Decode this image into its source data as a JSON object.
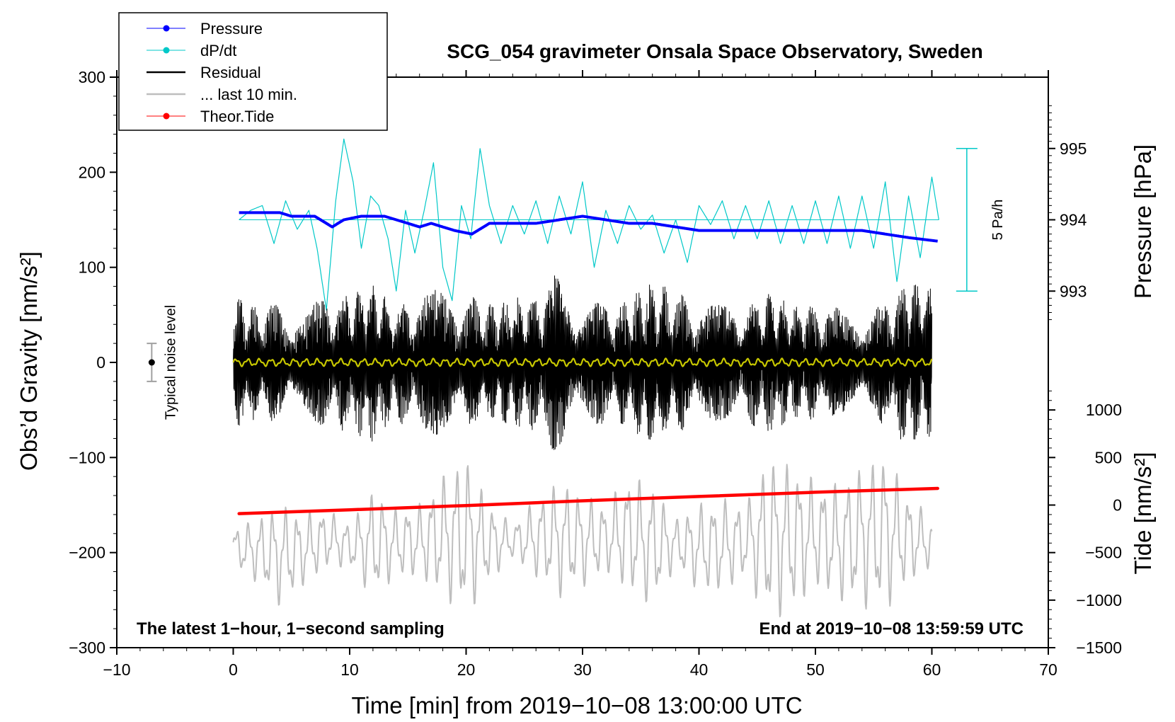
{
  "chart_data": {
    "type": "line",
    "title": "SCG_054 gravimeter Onsala Space Observatory, Sweden",
    "xlabel": "Time [min] from 2019−10−08 13:00:00 UTC",
    "ylabel_left": "Obs’d Gravity [nm/s²]",
    "ylabel_right_top": "Pressure [hPa]",
    "ylabel_right_bottom": "Tide [nm/s²]",
    "xlim": [
      -10,
      70
    ],
    "ylim": [
      -300,
      300
    ],
    "x_ticks": [
      -10,
      0,
      10,
      20,
      30,
      40,
      50,
      60,
      70
    ],
    "x_tick_labels": [
      "−10",
      "0",
      "10",
      "20",
      "30",
      "40",
      "50",
      "60",
      "70"
    ],
    "y_ticks": [
      -300,
      -200,
      -100,
      0,
      100,
      200,
      300
    ],
    "y_tick_labels": [
      "−300",
      "−200",
      "−100",
      "0",
      "100",
      "200",
      "300"
    ],
    "pressure_ticks": [
      993,
      994,
      995
    ],
    "pressure_tick_labels": [
      "993",
      "994",
      "995"
    ],
    "tide_ticks": [
      -1500,
      -1000,
      -500,
      0,
      500,
      1000
    ],
    "tide_tick_labels": [
      "−1500",
      "−1000",
      "−500",
      "0",
      "500",
      "1000"
    ],
    "pressure_axis": {
      "g_at_993": 75,
      "g_at_995": 225
    },
    "tide_axis": {
      "g_at_minus1500": -300,
      "g_at_1000": -50
    },
    "legend": [
      {
        "label": "Pressure",
        "color": "#0000ff",
        "marker": true
      },
      {
        "label": "dP/dt",
        "color": "#00c8c8",
        "marker": true
      },
      {
        "label": "Residual",
        "color": "#000000",
        "marker": false
      },
      {
        "label": "... last 10 min.",
        "color": "#bebebe",
        "marker": false
      },
      {
        "label": "Theor.Tide",
        "color": "#ff0000",
        "marker": true
      }
    ],
    "annotations": {
      "left_note": "The latest 1−hour, 1−second sampling",
      "right_note": "End at 2019−10−08 13:59:59 UTC",
      "noise_label": "Typical noise level",
      "scale_bar_label": "5 Pa/h"
    },
    "noise_bar": {
      "x": -7,
      "center": 0,
      "half_range": 20
    },
    "scale_bar": {
      "x": 63,
      "y_top": 225,
      "y_bottom": 75
    },
    "series": [
      {
        "name": "Pressure",
        "color": "#0000ff",
        "axis": "pressure_hPa",
        "x": [
          0.5,
          2,
          4,
          5,
          6,
          7,
          8.5,
          9.5,
          11,
          13,
          14,
          15,
          16,
          17,
          18,
          19,
          20.5,
          22,
          24,
          26,
          28,
          30,
          32,
          34,
          36,
          38,
          40,
          42,
          44,
          46,
          48,
          50,
          52,
          54,
          56,
          58,
          60.5
        ],
        "y": [
          994.1,
          994.1,
          994.1,
          994.05,
          994.05,
          994.05,
          993.9,
          994.0,
          994.05,
          994.05,
          994.0,
          993.95,
          993.9,
          993.95,
          993.9,
          993.85,
          993.8,
          993.95,
          993.95,
          993.95,
          994.0,
          994.05,
          994.0,
          993.95,
          993.95,
          993.9,
          993.85,
          993.85,
          993.85,
          993.85,
          993.85,
          993.85,
          993.85,
          993.85,
          993.8,
          993.75,
          993.7
        ]
      },
      {
        "name": "dP/dt",
        "color": "#00c8c8",
        "axis": "g_units",
        "baseline": 150,
        "x": [
          0.5,
          1.5,
          2.5,
          3.5,
          4.5,
          5.5,
          6.5,
          7.2,
          8,
          8.8,
          9.5,
          10.3,
          11,
          11.8,
          12.5,
          13.3,
          14,
          14.8,
          15.6,
          16.4,
          17.2,
          18,
          18.8,
          19.6,
          20.4,
          21.2,
          22,
          23,
          24,
          25,
          26,
          27,
          28,
          29,
          30,
          31,
          32,
          33,
          34,
          35,
          36,
          37,
          38,
          39,
          40,
          41,
          42,
          43,
          44,
          45,
          46,
          47,
          48,
          49,
          50,
          51,
          52,
          53,
          54,
          55,
          56,
          57,
          58,
          59,
          60,
          60.6
        ],
        "y": [
          150,
          160,
          165,
          125,
          170,
          140,
          160,
          120,
          55,
          170,
          235,
          190,
          120,
          175,
          165,
          130,
          75,
          160,
          115,
          160,
          210,
          100,
          65,
          165,
          130,
          225,
          165,
          125,
          165,
          135,
          170,
          125,
          175,
          135,
          190,
          100,
          160,
          125,
          165,
          140,
          155,
          115,
          150,
          105,
          165,
          145,
          170,
          130,
          165,
          130,
          170,
          125,
          165,
          125,
          170,
          125,
          175,
          120,
          175,
          120,
          190,
          85,
          175,
          110,
          195,
          150
        ]
      },
      {
        "name": "Residual",
        "color": "#000000",
        "axis": "g_units",
        "x": [
          0,
          2,
          4,
          6,
          8,
          10,
          12,
          14,
          16,
          18,
          20,
          22,
          24,
          26,
          28,
          30,
          32,
          34,
          36,
          38,
          40,
          42,
          44,
          46,
          48,
          50,
          52,
          54,
          56,
          58,
          60
        ],
        "envelope_pos": [
          72,
          58,
          64,
          55,
          70,
          75,
          82,
          60,
          73,
          78,
          72,
          62,
          67,
          73,
          97,
          70,
          62,
          68,
          88,
          73,
          65,
          60,
          63,
          75,
          62,
          60,
          57,
          58,
          63,
          88,
          85
        ],
        "envelope_neg": [
          -72,
          -60,
          -63,
          -55,
          -70,
          -74,
          -85,
          -62,
          -73,
          -78,
          -72,
          -62,
          -68,
          -73,
          -100,
          -72,
          -63,
          -68,
          -92,
          -74,
          -65,
          -60,
          -63,
          -76,
          -62,
          -60,
          -57,
          -58,
          -65,
          -90,
          -78
        ]
      },
      {
        "name": "... last 10 min.",
        "color": "#bebebe",
        "axis": "g_units",
        "baseline": -195,
        "x": [
          0,
          2,
          4,
          6,
          8,
          10,
          12,
          14,
          16,
          18,
          20,
          22,
          24,
          26,
          28,
          30,
          32,
          34,
          36,
          38,
          40,
          42,
          44,
          46,
          48,
          50,
          52,
          54,
          56,
          58,
          60
        ],
        "envelope_pos": [
          -175,
          -165,
          -150,
          -160,
          -155,
          -170,
          -135,
          -155,
          -150,
          -120,
          -100,
          -150,
          -170,
          -145,
          -125,
          -140,
          -150,
          -120,
          -130,
          -165,
          -150,
          -145,
          -150,
          -100,
          -110,
          -125,
          -130,
          -110,
          -98,
          -140,
          -165
        ],
        "envelope_neg": [
          -215,
          -230,
          -255,
          -235,
          -215,
          -215,
          -245,
          -225,
          -225,
          -245,
          -265,
          -230,
          -205,
          -225,
          -245,
          -235,
          -220,
          -240,
          -255,
          -215,
          -240,
          -240,
          -225,
          -270,
          -260,
          -235,
          -250,
          -255,
          -260,
          -230,
          -215
        ]
      },
      {
        "name": "Theor.Tide",
        "color": "#ff0000",
        "axis": "tide_nm_s2",
        "x": [
          0.5,
          10,
          20,
          30,
          40,
          50,
          60.5
        ],
        "y": [
          -90,
          -50,
          -5,
          45,
          90,
          135,
          175
        ]
      }
    ],
    "yellow_trace": {
      "name": "filtered residual",
      "color": "#c8c800",
      "amplitude": 3
    },
    "grid": false,
    "legend_position": "top-left"
  }
}
